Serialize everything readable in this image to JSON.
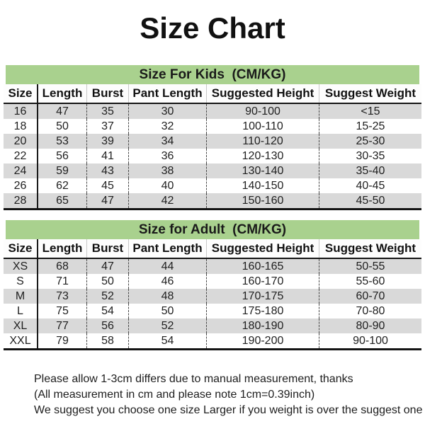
{
  "title": "Size Chart",
  "kids_table": {
    "section_title": "Size For Kids  (CM/KG)",
    "columns": [
      "Size",
      "Length",
      "Burst",
      "Pant Length",
      "Suggested Height",
      "Suggest Weight"
    ],
    "rows": [
      [
        "16",
        "47",
        "35",
        "30",
        "90-100",
        "<15"
      ],
      [
        "18",
        "50",
        "37",
        "32",
        "100-110",
        "15-25"
      ],
      [
        "20",
        "53",
        "39",
        "34",
        "110-120",
        "25-30"
      ],
      [
        "22",
        "56",
        "41",
        "36",
        "120-130",
        "30-35"
      ],
      [
        "24",
        "59",
        "43",
        "38",
        "130-140",
        "35-40"
      ],
      [
        "26",
        "62",
        "45",
        "40",
        "140-150",
        "40-45"
      ],
      [
        "28",
        "65",
        "47",
        "42",
        "150-160",
        "45-50"
      ]
    ]
  },
  "adult_table": {
    "section_title": "Size for Adult  (CM/KG)",
    "columns": [
      "Size",
      "Length",
      "Burst",
      "Pant Length",
      "Suggested Height",
      "Suggest Weight"
    ],
    "rows": [
      [
        "XS",
        "68",
        "47",
        "44",
        "160-165",
        "50-55"
      ],
      [
        "S",
        "71",
        "50",
        "46",
        "160-170",
        "55-60"
      ],
      [
        "M",
        "73",
        "52",
        "48",
        "170-175",
        "60-70"
      ],
      [
        "L",
        "75",
        "54",
        "50",
        "175-180",
        "70-80"
      ],
      [
        "XL",
        "77",
        "56",
        "52",
        "180-190",
        "80-90"
      ],
      [
        "XXL",
        "79",
        "58",
        "54",
        "190-200",
        "90-100"
      ]
    ]
  },
  "notes": [
    "Please allow 1-3cm differs due to manual measurement, thanks",
    "(All measurement in cm and please note 1cm=0.39inch)",
    "We suggest you choose one size Larger if you weight is over the suggest one"
  ],
  "colors": {
    "section_header_bg": "#a9d18e",
    "row_alt_bg": "#d9d9d9",
    "text": "#1c1c1c"
  }
}
